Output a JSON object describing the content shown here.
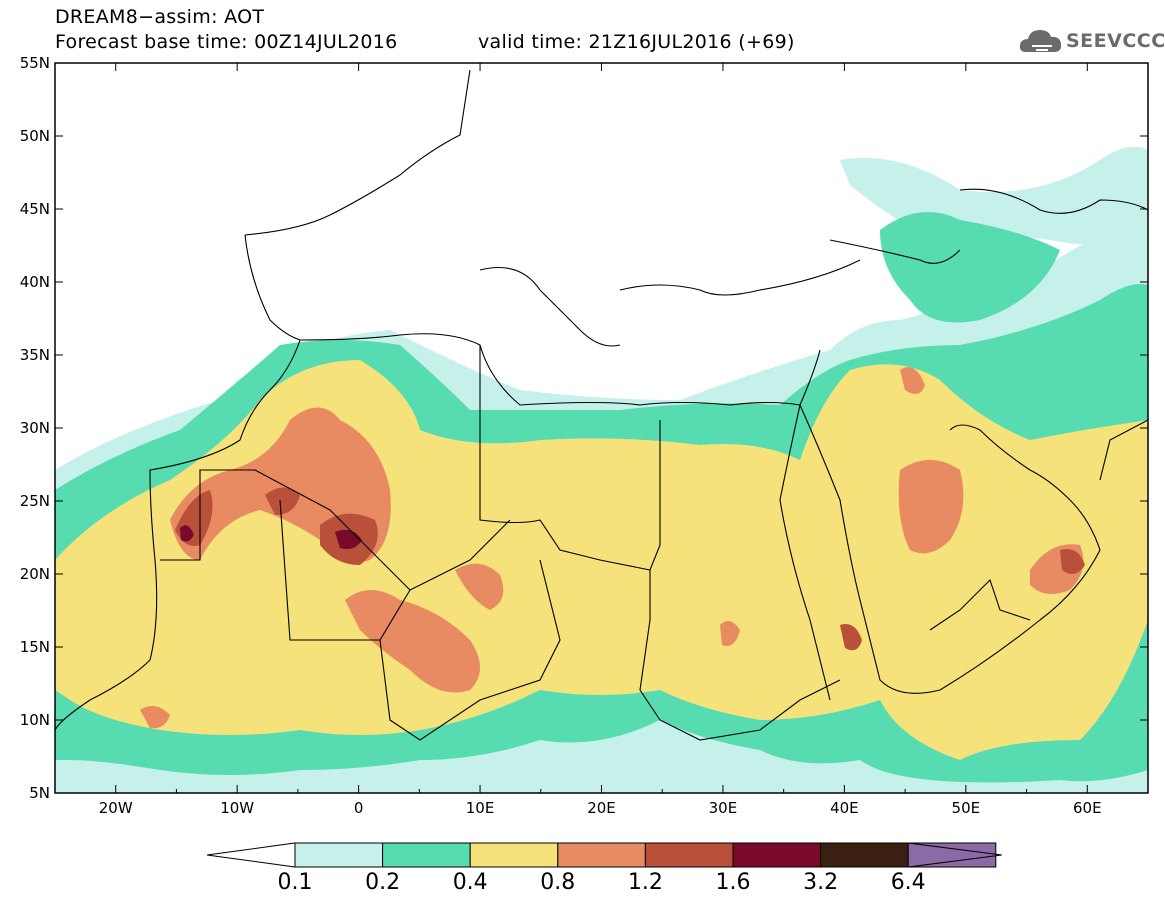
{
  "header": {
    "title_line1": "DREAM8−assim: AOT",
    "title_line2": "Forecast base time: 00Z14JUL2016",
    "valid_time": "valid time: 21Z16JUL2016 (+69)",
    "logo_text": "SEEVCCC"
  },
  "map": {
    "lat_labels": [
      "55N",
      "50N",
      "45N",
      "40N",
      "35N",
      "30N",
      "25N",
      "20N",
      "15N",
      "10N",
      "5N"
    ],
    "lon_labels": [
      "20W",
      "10W",
      "0",
      "10E",
      "20E",
      "30E",
      "40E",
      "50E",
      "60E"
    ],
    "extent": {
      "lon": [
        -25,
        65
      ],
      "lat": [
        5,
        55
      ]
    },
    "variable": "Aerosol optical thickness"
  },
  "colorbar": {
    "labels": [
      "0.1",
      "0.2",
      "0.4",
      "0.8",
      "1.2",
      "1.6",
      "3.2",
      "6.4"
    ],
    "colors": [
      "#ffffff",
      "#c6f0ea",
      "#56dcb0",
      "#f5e27a",
      "#e88a62",
      "#b8503a",
      "#7a0a2a",
      "#3b1f12",
      "#8c6aa6"
    ]
  }
}
